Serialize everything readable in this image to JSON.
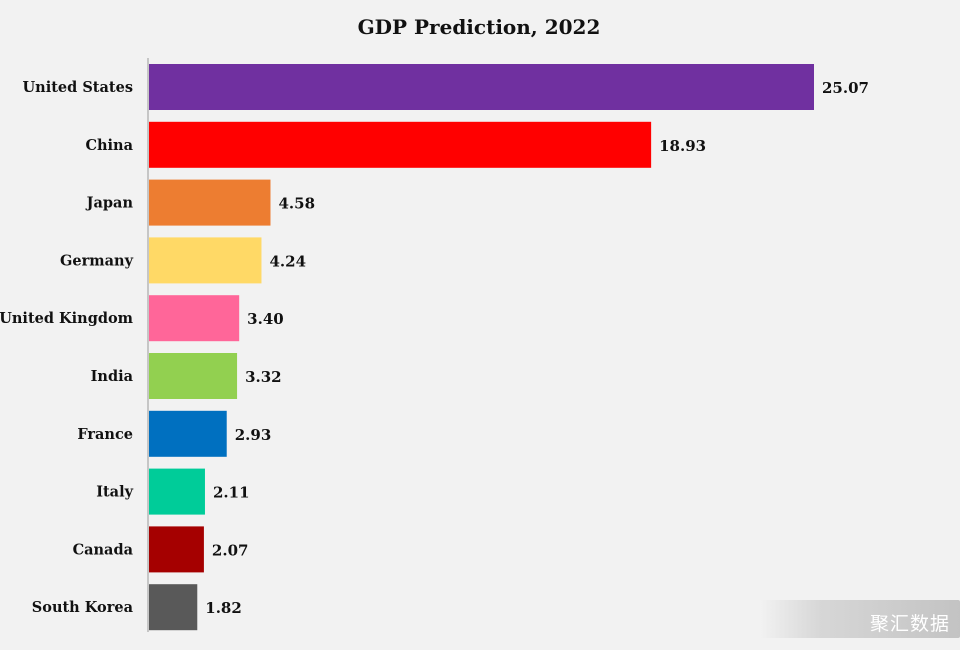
{
  "watermark": "聚汇数据",
  "colors": {
    "background": "#f2f2f2",
    "axis": "#999999"
  },
  "chart_data": {
    "type": "bar",
    "orientation": "horizontal",
    "title": "GDP Prediction, 2022",
    "xlabel": "",
    "ylabel": "",
    "xlim": [
      0,
      25.07
    ],
    "grid": false,
    "legend": "none",
    "categories": [
      "United States",
      "China",
      "Japan",
      "Germany",
      "United Kingdom",
      "India",
      "France",
      "Italy",
      "Canada",
      "South Korea"
    ],
    "values": [
      25.07,
      18.93,
      4.58,
      4.24,
      3.4,
      3.32,
      2.93,
      2.11,
      2.07,
      1.82
    ],
    "value_labels": [
      "25.07",
      "18.93",
      "4.58",
      "4.24",
      "3.40",
      "3.32",
      "2.93",
      "2.11",
      "2.07",
      "1.82"
    ],
    "bar_colors": [
      "#7030a0",
      "#ff0000",
      "#ed7d31",
      "#ffd966",
      "#ff6699",
      "#92d050",
      "#0070c0",
      "#00cc99",
      "#a50000",
      "#595959"
    ]
  }
}
